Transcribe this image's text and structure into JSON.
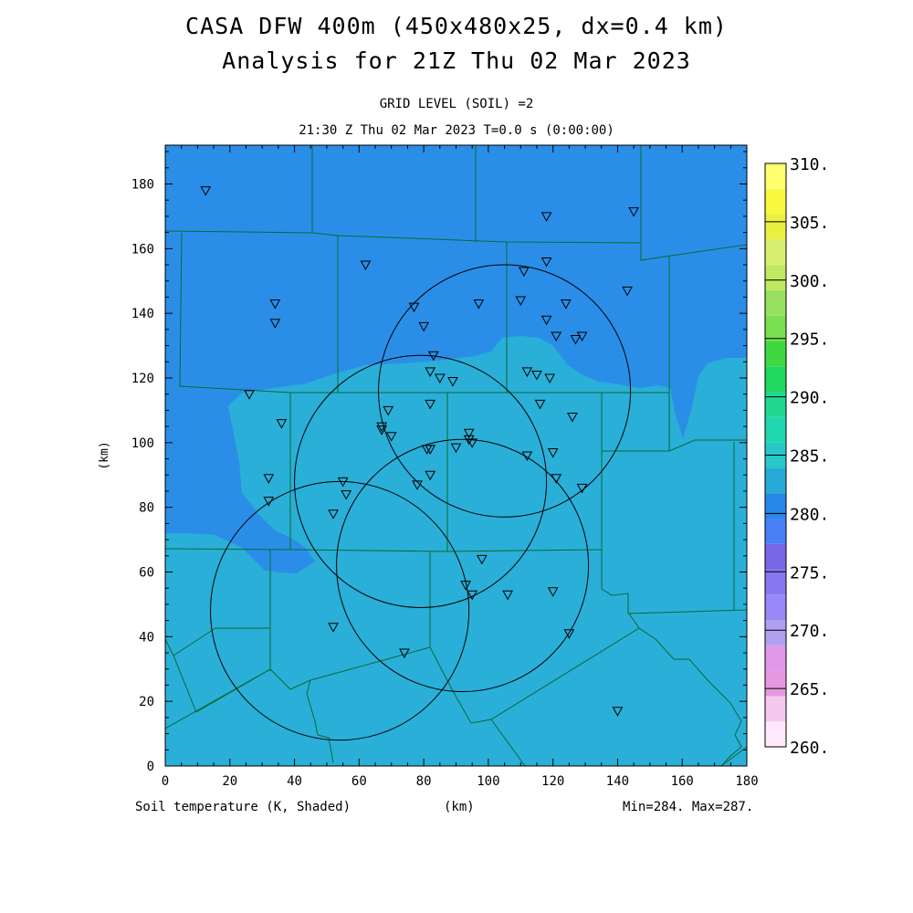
{
  "title": {
    "line1": "CASA DFW 400m (450x480x25, dx=0.4 km)",
    "line2": "Analysis for 21Z Thu 02 Mar 2023"
  },
  "subtitle": {
    "grid_level": "GRID LEVEL (SOIL) =2",
    "time": "21:30 Z Thu 02 Mar 2023   T=0.0 s (0:00:00)"
  },
  "axes": {
    "x_ticks": [
      "0",
      "20",
      "40",
      "60",
      "80",
      "100",
      "120",
      "140",
      "160",
      "180"
    ],
    "y_ticks": [
      "0",
      "20",
      "40",
      "60",
      "80",
      "100",
      "120",
      "140",
      "160",
      "180"
    ],
    "xlabel": "(km)",
    "ylabel": "(km)",
    "x_range": [
      0,
      180
    ],
    "y_range": [
      0,
      192
    ]
  },
  "footer": {
    "field": "Soil temperature (K, Shaded)",
    "xunit": "(km)",
    "minmax": "Min=284. Max=287."
  },
  "colorbar": {
    "labels": [
      "260.",
      "265.",
      "270.",
      "275.",
      "280.",
      "285.",
      "290.",
      "295.",
      "300.",
      "305.",
      "310."
    ],
    "colors": [
      "#ffe8fc",
      "#f5c8f0",
      "#e898e0",
      "#e098e8",
      "#b0a0f0",
      "#9888f8",
      "#8878f0",
      "#7868e8",
      "#4880f8",
      "#2888e8",
      "#28aad8",
      "#28c8c8",
      "#20d8b0",
      "#20d890",
      "#20d860",
      "#40d840",
      "#78e050",
      "#98e060",
      "#c0e860",
      "#d8f070",
      "#e8f040",
      "#f8f840",
      "#ffff70"
    ]
  },
  "colors": {
    "field_285": "#2a8ee8",
    "field_287": "#2aafd8",
    "boundaries": "#0b6a34",
    "rings": "#000000"
  },
  "radars": [
    {
      "cx": 105,
      "cy": 116,
      "r": 39
    },
    {
      "cx": 79,
      "cy": 88,
      "r": 39
    },
    {
      "cx": 92,
      "cy": 62,
      "r": 39
    },
    {
      "cx": 54,
      "cy": 48,
      "r": 40
    }
  ],
  "stations": [
    [
      12.5,
      178
    ],
    [
      118,
      170
    ],
    [
      145,
      171.5
    ],
    [
      62,
      155
    ],
    [
      118,
      156
    ],
    [
      111,
      153
    ],
    [
      34,
      143
    ],
    [
      34,
      137
    ],
    [
      77,
      142
    ],
    [
      97,
      143
    ],
    [
      110,
      144
    ],
    [
      124,
      143
    ],
    [
      143,
      147
    ],
    [
      80,
      136
    ],
    [
      118,
      138
    ],
    [
      121,
      133
    ],
    [
      127,
      132
    ],
    [
      129,
      133
    ],
    [
      83,
      127
    ],
    [
      82,
      122
    ],
    [
      85,
      120
    ],
    [
      89,
      119
    ],
    [
      112,
      122
    ],
    [
      115,
      121
    ],
    [
      119,
      120
    ],
    [
      26,
      115
    ],
    [
      82,
      112
    ],
    [
      116,
      112
    ],
    [
      126,
      108
    ],
    [
      36,
      106
    ],
    [
      69,
      110
    ],
    [
      67,
      105
    ],
    [
      67,
      104
    ],
    [
      70,
      102
    ],
    [
      94,
      103
    ],
    [
      94,
      101
    ],
    [
      95,
      100
    ],
    [
      90,
      98.5
    ],
    [
      81,
      98
    ],
    [
      82,
      98
    ],
    [
      112,
      96
    ],
    [
      120,
      97
    ],
    [
      32,
      89
    ],
    [
      82,
      90
    ],
    [
      78,
      87
    ],
    [
      121,
      89
    ],
    [
      129,
      86
    ],
    [
      55,
      88
    ],
    [
      56,
      84
    ],
    [
      32,
      82
    ],
    [
      52,
      78
    ],
    [
      98,
      64
    ],
    [
      93,
      56
    ],
    [
      95,
      53
    ],
    [
      106,
      53
    ],
    [
      120,
      54
    ],
    [
      52,
      43
    ],
    [
      125,
      41
    ],
    [
      74,
      35
    ],
    [
      140,
      17
    ]
  ]
}
